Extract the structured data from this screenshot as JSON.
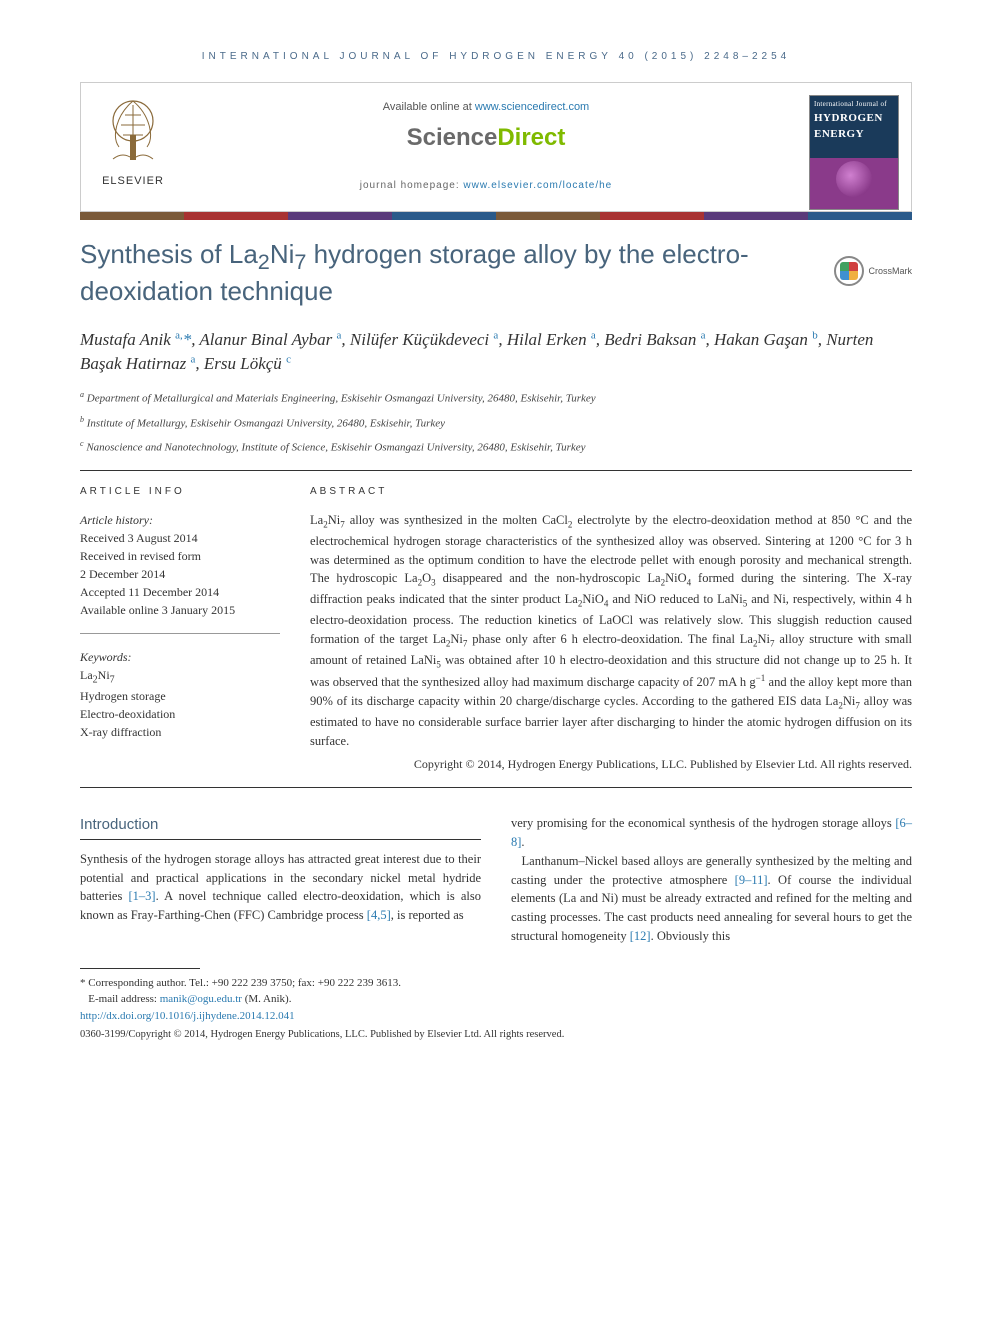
{
  "header": {
    "journal_line": "INTERNATIONAL JOURNAL OF HYDROGEN ENERGY 40 (2015) 2248–2254",
    "available_prefix": "Available online at ",
    "available_link": "www.sciencedirect.com",
    "sd_logo_left": "Science",
    "sd_logo_right": "Direct",
    "homepage_prefix": "journal homepage: ",
    "homepage_link": "www.elsevier.com/locate/he",
    "elsevier_label": "ELSEVIER",
    "cover_line1": "International Journal of",
    "cover_line2": "HYDROGEN",
    "cover_line3": "ENERGY"
  },
  "color_bar": [
    "#7a5a3a",
    "#a83232",
    "#5a3a7a",
    "#2a5a8a",
    "#7a5a3a",
    "#a83232",
    "#5a3a7a",
    "#2a5a8a"
  ],
  "title_html": "Synthesis of La<sub>2</sub>Ni<sub>7</sub> hydrogen storage alloy by the electro-deoxidation technique",
  "crossmark_label": "CrossMark",
  "authors_html": "Mustafa Anik <sup>a,</sup><span class='corr'>*</span>, Alanur Binal Aybar <sup>a</sup>, Nilüfer Küçükdeveci <sup>a</sup>, Hilal Erken <sup>a</sup>, Bedri Baksan <sup>a</sup>, Hakan Gaşan <sup>b</sup>, Nurten Başak Hatirnaz <sup>a</sup>, Ersu Lökçü <sup>c</sup>",
  "affiliations": [
    "<sup>a</sup> Department of Metallurgical and Materials Engineering, Eskisehir Osmangazi University, 26480, Eskisehir, Turkey",
    "<sup>b</sup> Institute of Metallurgy, Eskisehir Osmangazi University, 26480, Eskisehir, Turkey",
    "<sup>c</sup> Nanoscience and Nanotechnology, Institute of Science, Eskisehir Osmangazi University, 26480, Eskisehir, Turkey"
  ],
  "info": {
    "label": "ARTICLE INFO",
    "history_label": "Article history:",
    "history": [
      "Received 3 August 2014",
      "Received in revised form",
      "2 December 2014",
      "Accepted 11 December 2014",
      "Available online 3 January 2015"
    ],
    "keywords_label": "Keywords:",
    "keywords": [
      "La<sub>2</sub>Ni<sub>7</sub>",
      "Hydrogen storage",
      "Electro-deoxidation",
      "X-ray diffraction"
    ]
  },
  "abstract": {
    "label": "ABSTRACT",
    "text_html": "La<sub>2</sub>Ni<sub>7</sub> alloy was synthesized in the molten CaCl<sub>2</sub> electrolyte by the electro-deoxidation method at 850 °C and the electrochemical hydrogen storage characteristics of the synthesized alloy was observed. Sintering at 1200 °C for 3 h was determined as the optimum condition to have the electrode pellet with enough porosity and mechanical strength. The hydroscopic La<sub>2</sub>O<sub>3</sub> disappeared and the non-hydroscopic La<sub>2</sub>NiO<sub>4</sub> formed during the sintering. The X-ray diffraction peaks indicated that the sinter product La<sub>2</sub>NiO<sub>4</sub> and NiO reduced to LaNi<sub>5</sub> and Ni, respectively, within 4 h electro-deoxidation process. The reduction kinetics of LaOCl was relatively slow. This sluggish reduction caused formation of the target La<sub>2</sub>Ni<sub>7</sub> phase only after 6 h electro-deoxidation. The final La<sub>2</sub>Ni<sub>7</sub> alloy structure with small amount of retained LaNi<sub>5</sub> was obtained after 10 h electro-deoxidation and this structure did not change up to 25 h. It was observed that the synthesized alloy had maximum discharge capacity of 207 mA h g<sup>−1</sup> and the alloy kept more than 90% of its discharge capacity within 20 charge/discharge cycles. According to the gathered EIS data La<sub>2</sub>Ni<sub>7</sub> alloy was estimated to have no considerable surface barrier layer after discharging to hinder the atomic hydrogen diffusion on its surface.",
    "copyright": "Copyright © 2014, Hydrogen Energy Publications, LLC. Published by Elsevier Ltd. All rights reserved."
  },
  "body": {
    "intro_heading": "Introduction",
    "left_html": "Synthesis of the hydrogen storage alloys has attracted great interest due to their potential and practical applications in the secondary nickel metal hydride batteries <a class='ref-link' href='#'>[1–3]</a>. A novel technique called electro-deoxidation, which is also known as Fray-Farthing-Chen (FFC) Cambridge process <a class='ref-link' href='#'>[4,5]</a>, is reported as",
    "right_html": "very promising for the economical synthesis of the hydrogen storage alloys <a class='ref-link' href='#'>[6–8]</a>.<br>&nbsp;&nbsp;&nbsp;Lanthanum–Nickel based alloys are generally synthesized by the melting and casting under the protective atmosphere <a class='ref-link' href='#'>[9–11]</a>. Of course the individual elements (La and Ni) must be already extracted and refined for the melting and casting processes. The cast products need annealing for several hours to get the structural homogeneity <a class='ref-link' href='#'>[12]</a>. Obviously this"
  },
  "footer": {
    "corr_line": "* Corresponding author. Tel.: +90 222 239 3750; fax: +90 222 239 3613.",
    "email_label": "E-mail address: ",
    "email": "manik@ogu.edu.tr",
    "email_suffix": " (M. Anik).",
    "doi": "http://dx.doi.org/10.1016/j.ijhydene.2014.12.041",
    "issn_line": "0360-3199/Copyright © 2014, Hydrogen Energy Publications, LLC. Published by Elsevier Ltd. All rights reserved."
  },
  "colors": {
    "link": "#2a7ab0",
    "heading": "#48647c",
    "sd_green": "#7fba00",
    "sd_grey": "#6a6a6a"
  }
}
